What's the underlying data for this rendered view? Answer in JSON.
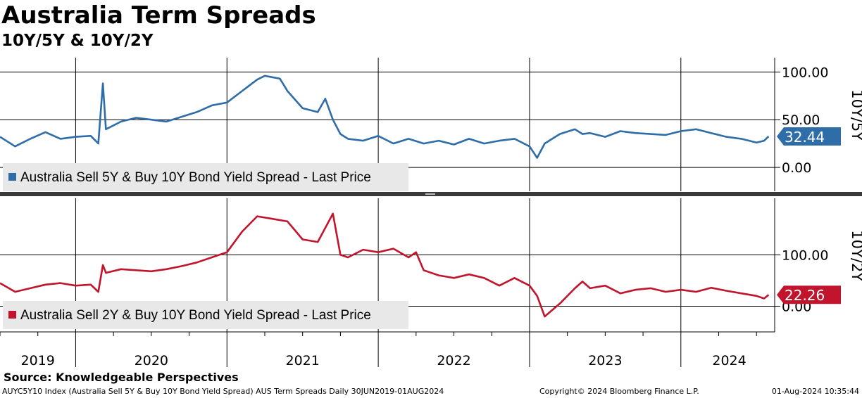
{
  "title": "Australia Term Spreads",
  "subtitle": "10Y/5Y & 10Y/2Y",
  "chart_data": [
    {
      "type": "line",
      "panel": "top",
      "axis_title": "10Y/5Y",
      "ylim": [
        -25,
        115
      ],
      "yticks": [
        {
          "value": 100,
          "label": "100.00"
        },
        {
          "value": 50,
          "label": "50.00"
        },
        {
          "value": 0,
          "label": "0.00"
        }
      ],
      "legend": "Australia Sell 5Y & Buy 10Y Bond Yield Spread - Last Price",
      "color": "#2e6da8",
      "last_value": 32.44,
      "last_label": "32.44",
      "series": {
        "name": "Australia Sell 5Y & Buy 10Y Bond Yield Spread",
        "x": [
          2019.5,
          2019.6,
          2019.7,
          2019.8,
          2019.9,
          2020.0,
          2020.1,
          2020.15,
          2020.18,
          2020.2,
          2020.3,
          2020.4,
          2020.5,
          2020.6,
          2020.7,
          2020.8,
          2020.9,
          2021.0,
          2021.1,
          2021.2,
          2021.25,
          2021.35,
          2021.4,
          2021.5,
          2021.6,
          2021.65,
          2021.7,
          2021.75,
          2021.8,
          2021.9,
          2022.0,
          2022.1,
          2022.2,
          2022.3,
          2022.4,
          2022.5,
          2022.6,
          2022.7,
          2022.8,
          2022.9,
          2023.0,
          2023.05,
          2023.1,
          2023.2,
          2023.3,
          2023.35,
          2023.4,
          2023.5,
          2023.6,
          2023.7,
          2023.8,
          2023.9,
          2024.0,
          2024.1,
          2024.2,
          2024.3,
          2024.4,
          2024.5,
          2024.55,
          2024.58
        ],
        "y": [
          32,
          22,
          30,
          37,
          30,
          32,
          33,
          25,
          88,
          40,
          48,
          52,
          50,
          48,
          53,
          58,
          65,
          68,
          80,
          92,
          96,
          93,
          80,
          62,
          58,
          72,
          50,
          35,
          30,
          28,
          33,
          25,
          30,
          25,
          28,
          24,
          30,
          25,
          28,
          30,
          22,
          10,
          25,
          35,
          40,
          35,
          36,
          32,
          38,
          36,
          35,
          34,
          38,
          40,
          36,
          32,
          30,
          26,
          28,
          32.44
        ]
      }
    },
    {
      "type": "line",
      "panel": "bottom",
      "axis_title": "10Y/2Y",
      "ylim": [
        -50,
        210
      ],
      "yticks": [
        {
          "value": 100,
          "label": "100.00"
        },
        {
          "value": 0,
          "label": "0.00"
        }
      ],
      "legend": "Australia Sell 2Y & Buy 10Y Bond Yield Spread - Last Price",
      "color": "#c0152c",
      "last_value": 22.26,
      "last_label": "22.26",
      "series": {
        "name": "Australia Sell 2Y & Buy 10Y Bond Yield Spread",
        "x": [
          2019.5,
          2019.6,
          2019.7,
          2019.8,
          2019.9,
          2020.0,
          2020.1,
          2020.15,
          2020.18,
          2020.2,
          2020.3,
          2020.4,
          2020.5,
          2020.6,
          2020.7,
          2020.8,
          2020.9,
          2021.0,
          2021.1,
          2021.2,
          2021.3,
          2021.4,
          2021.5,
          2021.6,
          2021.7,
          2021.75,
          2021.8,
          2021.9,
          2022.0,
          2022.1,
          2022.2,
          2022.25,
          2022.3,
          2022.4,
          2022.5,
          2022.6,
          2022.7,
          2022.8,
          2022.9,
          2023.0,
          2023.05,
          2023.1,
          2023.2,
          2023.3,
          2023.35,
          2023.4,
          2023.5,
          2023.6,
          2023.7,
          2023.8,
          2023.9,
          2024.0,
          2024.1,
          2024.2,
          2024.3,
          2024.4,
          2024.5,
          2024.55,
          2024.58
        ],
        "y": [
          45,
          28,
          35,
          42,
          45,
          40,
          42,
          28,
          80,
          65,
          72,
          70,
          68,
          72,
          78,
          85,
          95,
          105,
          145,
          175,
          170,
          165,
          130,
          125,
          180,
          100,
          95,
          110,
          105,
          112,
          95,
          105,
          70,
          60,
          55,
          62,
          55,
          40,
          55,
          40,
          20,
          -20,
          5,
          35,
          48,
          35,
          40,
          25,
          32,
          35,
          28,
          32,
          28,
          36,
          30,
          25,
          20,
          15,
          22.26
        ]
      }
    }
  ],
  "x_axis": {
    "xlim": [
      2019.5,
      2024.62
    ],
    "year_labels": [
      "2019",
      "2020",
      "2021",
      "2022",
      "2023",
      "2024"
    ],
    "year_centers": [
      2019.75,
      2020.5,
      2021.5,
      2022.5,
      2023.5,
      2024.32
    ],
    "year_dividers": [
      2020.0,
      2021.0,
      2022.0,
      2023.0,
      2024.0
    ],
    "minor_ticks": [
      2019.5,
      2019.75,
      2020.25,
      2020.5,
      2020.75,
      2021.25,
      2021.5,
      2021.75,
      2022.25,
      2022.5,
      2022.75,
      2023.25,
      2023.5,
      2023.75,
      2024.25,
      2024.5
    ]
  },
  "footer": {
    "source": "Source: Knowledgeable Perspectives",
    "description": "AUYC5Y10 Index (Australia Sell 5Y & Buy 10Y Bond Yield Spread) AUS Term Spreads  Daily 30JUN2019-01AUG2024",
    "copyright": "Copyright© 2024 Bloomberg Finance L.P.",
    "datetime": "01-Aug-2024 10:35:44"
  }
}
